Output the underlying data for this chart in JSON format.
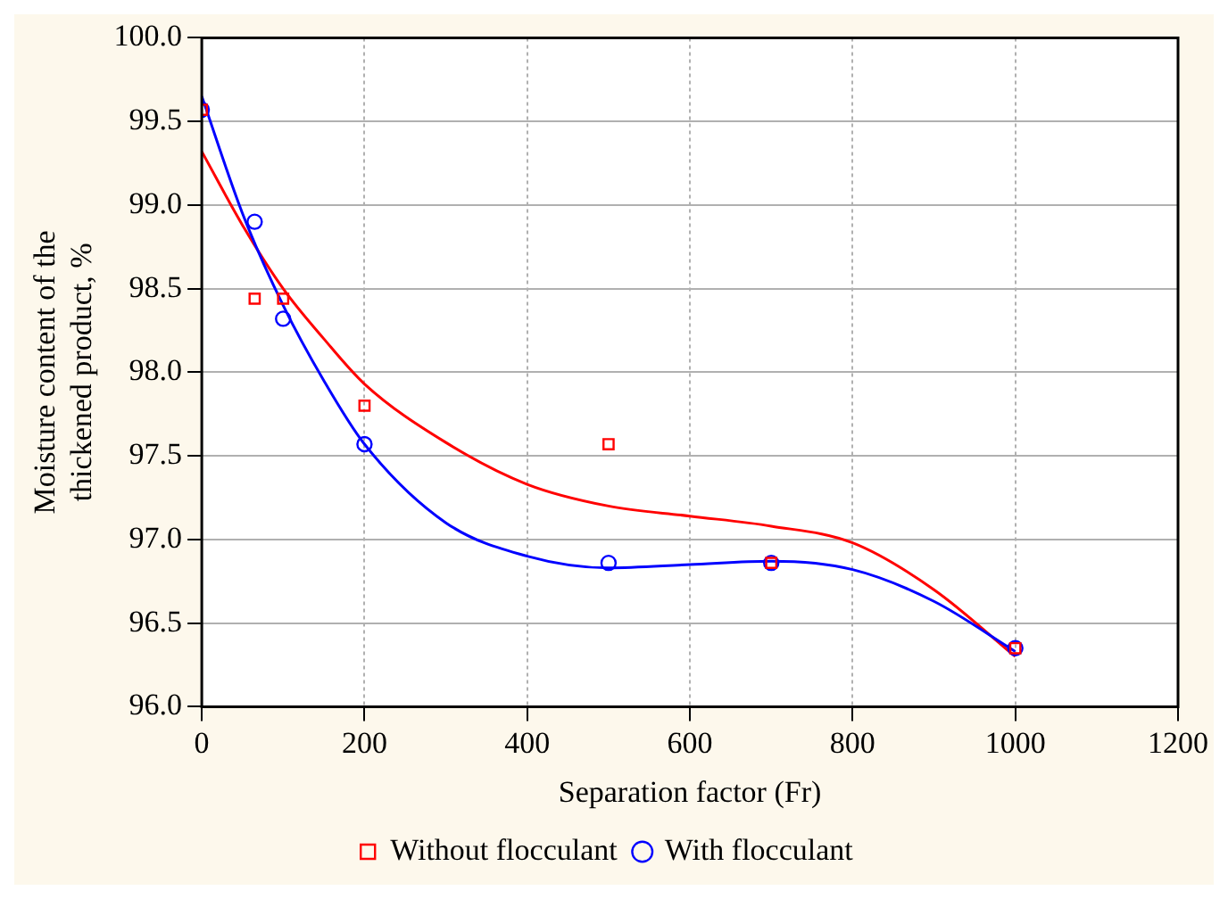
{
  "chart_data": {
    "type": "scatter",
    "xlabel": "Separation factor (Fr)",
    "ylabel": "Moisture content of the thickened product, %",
    "xlim": [
      0,
      1200
    ],
    "xticks": [
      0,
      200,
      400,
      600,
      800,
      1000,
      1200
    ],
    "ylim": [
      96,
      100
    ],
    "yticks": [
      {
        "value": 96,
        "label": "96.0"
      },
      {
        "value": 96.5,
        "label": "96.5"
      },
      {
        "value": 97,
        "label": "97.0"
      },
      {
        "value": 97.5,
        "label": "97.5"
      },
      {
        "value": 98,
        "label": "98.0"
      },
      {
        "value": 98.5,
        "label": "98.5"
      },
      {
        "value": 99,
        "label": "99.0"
      },
      {
        "value": 99.5,
        "label": "99.5"
      },
      {
        "value": 100,
        "label": "100.0"
      }
    ],
    "grid": true,
    "legend": "bottom",
    "series": [
      {
        "type": "line",
        "color": "#0000ff",
        "marker": "none",
        "x": [
          0,
          50,
          100,
          150,
          200,
          300,
          400,
          500,
          600,
          700,
          800,
          900,
          1000
        ],
        "values": [
          99.65,
          98.95,
          98.4,
          97.95,
          97.57,
          97.1,
          96.9,
          96.83,
          96.85,
          96.87,
          96.82,
          96.63,
          96.33
        ]
      },
      {
        "type": "line",
        "color": "#ff0000",
        "marker": "none",
        "x": [
          0,
          50,
          100,
          150,
          200,
          300,
          400,
          500,
          600,
          700,
          800,
          900,
          1000
        ],
        "values": [
          99.32,
          98.88,
          98.5,
          98.2,
          97.93,
          97.58,
          97.33,
          97.2,
          97.14,
          97.08,
          96.98,
          96.7,
          96.3
        ]
      },
      {
        "name": "With flocculant",
        "color": "#0000ff",
        "marker": "circle",
        "x": [
          0,
          65,
          100,
          200,
          500,
          700,
          1000
        ],
        "values": [
          99.57,
          98.9,
          98.32,
          97.57,
          96.86,
          96.86,
          96.35
        ]
      },
      {
        "name": "Without flocculant",
        "color": "#ff0000",
        "marker": "square",
        "x": [
          0,
          65,
          100,
          200,
          500,
          700,
          1000
        ],
        "values": [
          99.57,
          98.44,
          98.44,
          97.8,
          97.57,
          96.86,
          96.35
        ]
      }
    ]
  }
}
